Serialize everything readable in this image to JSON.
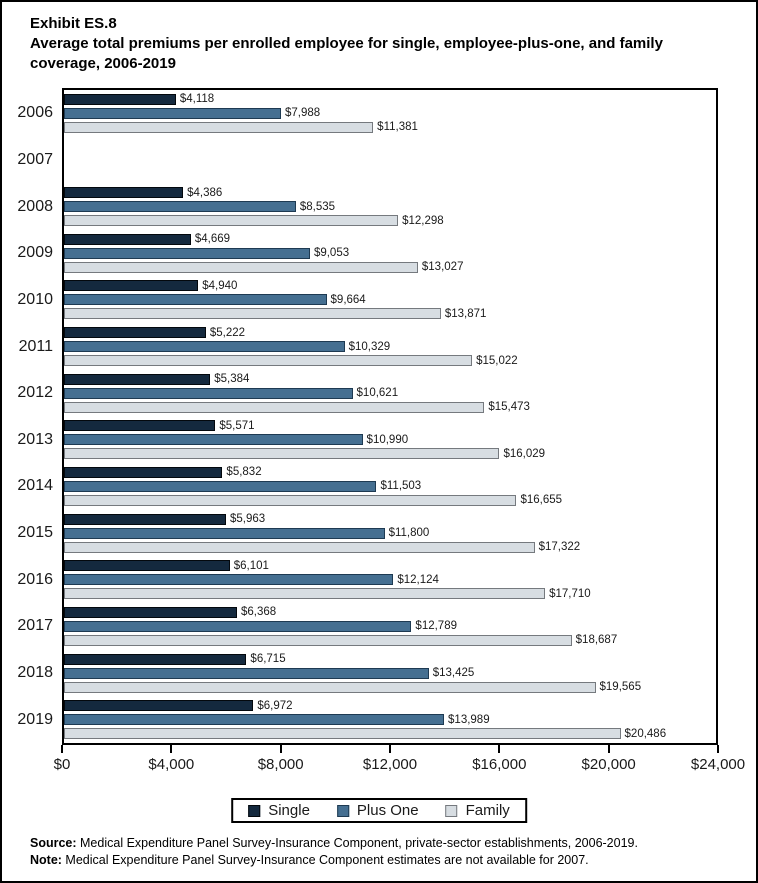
{
  "header": {
    "exhibit": "Exhibit ES.8",
    "title": "Average total premiums per enrolled employee for single, employee-plus-one, and family coverage, 2006-2019"
  },
  "chart_data": {
    "type": "bar",
    "orientation": "horizontal",
    "title": "Average total premiums per enrolled employee for single, employee-plus-one, and family coverage, 2006-2019",
    "categories": [
      "2006",
      "2007",
      "2008",
      "2009",
      "2010",
      "2011",
      "2012",
      "2013",
      "2014",
      "2015",
      "2016",
      "2017",
      "2018",
      "2019"
    ],
    "series": [
      {
        "name": "Single",
        "fill": "#14293e",
        "border": "#03080d",
        "values": [
          4118,
          null,
          4386,
          4669,
          4940,
          5222,
          5384,
          5571,
          5832,
          5963,
          6101,
          6368,
          6715,
          6972
        ],
        "labels": [
          "$4,118",
          null,
          "$4,386",
          "$4,669",
          "$4,940",
          "$5,222",
          "$5,384",
          "$5,571",
          "$5,832",
          "$5,963",
          "$6,101",
          "$6,368",
          "$6,715",
          "$6,972"
        ]
      },
      {
        "name": "Plus One",
        "fill": "#456f91",
        "border": "#1e3covered"
      },
      {
        "name": "Family",
        "fill": "#d7dde2",
        "border": "#75797e",
        "values": [
          11381,
          null,
          12298,
          13027,
          13871,
          15022,
          15473,
          16029,
          16655,
          17322,
          17710,
          18687,
          19565,
          20486
        ],
        "labels": [
          "$11,381",
          null,
          "$12,298",
          "$13,027",
          "$13,871",
          "$15,022",
          "$15,473",
          "$16,029",
          "$16,655",
          "$17,322",
          "$17,710",
          "$18,687",
          "$19,565",
          "$20,486"
        ]
      }
    ],
    "xlim": [
      0,
      24000
    ],
    "x_ticks": [
      "$0",
      "$4,000",
      "$8,000",
      "$12,000",
      "$16,000",
      "$20,000",
      "$24,000"
    ],
    "grid": false,
    "legend_position": "bottom"
  },
  "footer": {
    "source_label": "Source:",
    "source_text": " Medical Expenditure Panel Survey-Insurance Component, private-sector establishments, 2006-2019.",
    "note_label": "Note:",
    "note_text": " Medical Expenditure Panel Survey-Insurance Component estimates are not available for 2007."
  }
}
